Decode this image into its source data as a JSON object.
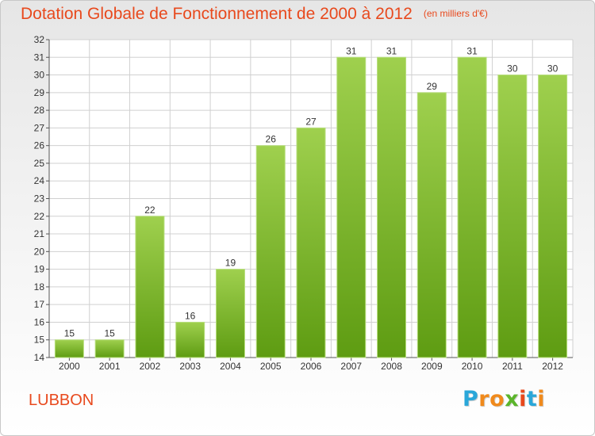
{
  "header": {
    "title": "Dotation Globale de Fonctionnement de 2000 à 2012",
    "unit": "(en milliers d'€)"
  },
  "commune": "LUBBON",
  "logo": {
    "letters": [
      "P",
      "r",
      "o",
      "x",
      "i",
      "t",
      "i"
    ],
    "colors": [
      "#2aa7d9",
      "#f08a1c",
      "#f08a1c",
      "#5bb52b",
      "#e8491d",
      "#2aa7d9",
      "#f08a1c"
    ]
  },
  "chart_data": {
    "type": "bar",
    "categories": [
      "2000",
      "2001",
      "2002",
      "2003",
      "2004",
      "2005",
      "2006",
      "2007",
      "2008",
      "2009",
      "2010",
      "2011",
      "2012"
    ],
    "values": [
      15,
      15,
      22,
      16,
      19,
      26,
      27,
      31,
      31,
      29,
      31,
      30,
      30
    ],
    "ylim": [
      14,
      32
    ],
    "yticks": [
      "14",
      "15",
      "16",
      "17",
      "18",
      "19",
      "20",
      "21",
      "22",
      "23",
      "24",
      "25",
      "26",
      "27",
      "28",
      "29",
      "30",
      "31",
      "32"
    ],
    "grid": true,
    "bar_color_top": "#9fd04e",
    "bar_color_bottom": "#5e9c12"
  }
}
